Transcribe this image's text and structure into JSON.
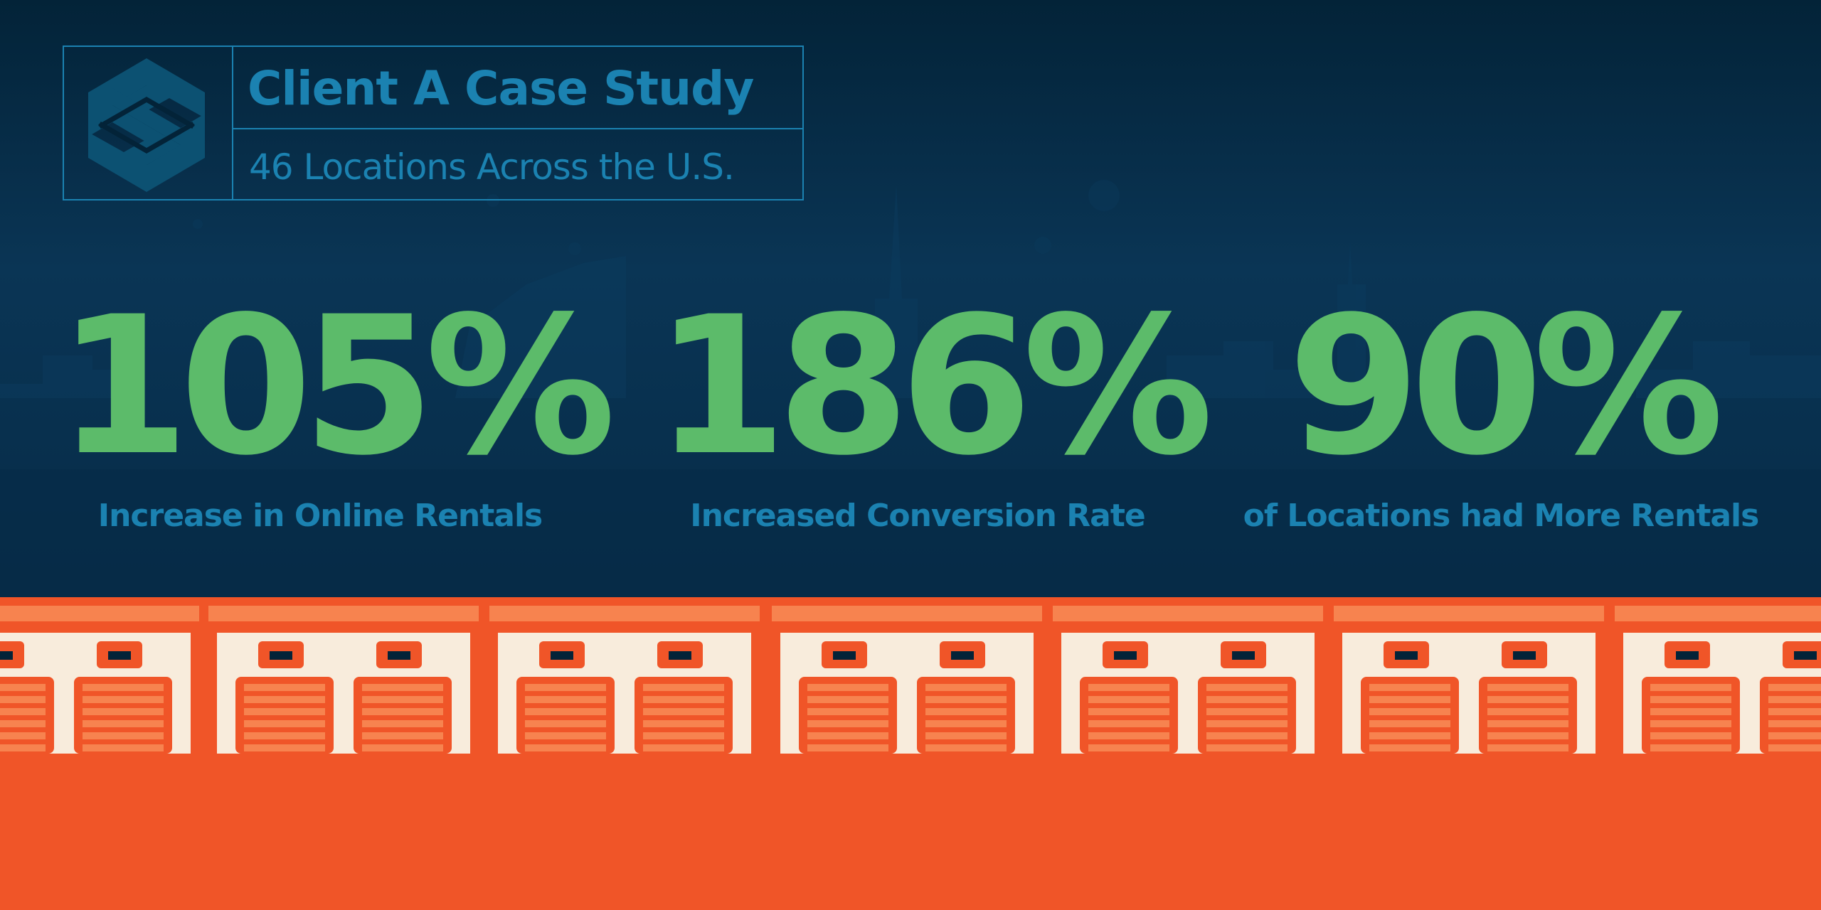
{
  "header": {
    "title": "Client A Case Study",
    "subtitle": "46 Locations Across the U.S."
  },
  "stats": [
    {
      "value": "105%",
      "label": "Increase in Online Rentals"
    },
    {
      "value": "186%",
      "label": "Increased Conversion Rate"
    },
    {
      "value": "90%",
      "label": "of Locations had More Rentals"
    }
  ],
  "colors": {
    "background_dark": "#032338",
    "accent_blue": "#1b82b1",
    "stat_green": "#5cbb6a",
    "storage_orange": "#f05528",
    "storage_light_orange": "#f7834f",
    "storage_cream": "#f8ecdc"
  },
  "icons": {
    "logo": "s-logo-icon"
  }
}
